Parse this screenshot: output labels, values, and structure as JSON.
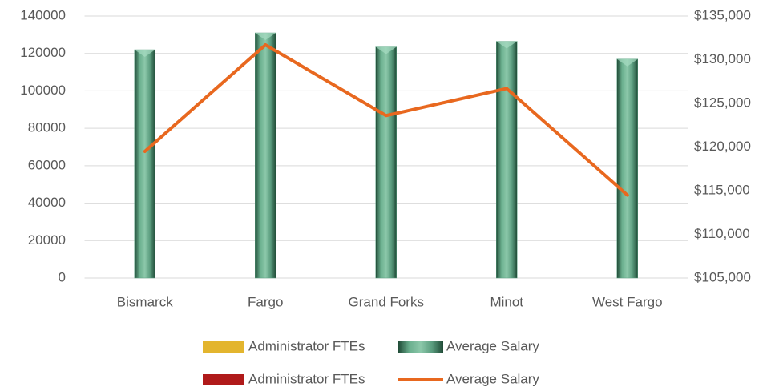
{
  "chart_data": {
    "type": "bar-line",
    "categories": [
      "Bismarck",
      "Fargo",
      "Grand Forks",
      "Minot",
      "West Fargo"
    ],
    "series": [
      {
        "name": "Administrator FTEs",
        "color": "#e3b52e",
        "mark": "bar",
        "values": [
          null,
          null,
          null,
          null,
          null
        ]
      },
      {
        "name": "Average Salary",
        "color": "#5b9f80",
        "mark": "bar",
        "values": [
          122000,
          131000,
          123500,
          126500,
          117000
        ]
      },
      {
        "name": "Administrator FTEs",
        "color": "#b01a1a",
        "mark": "bar",
        "axis": "y2",
        "values": [
          null,
          null,
          null,
          null,
          null
        ]
      },
      {
        "name": "Average Salary",
        "color": "#e8681f",
        "mark": "line",
        "axis": "y2",
        "values": [
          119500,
          131700,
          123600,
          126700,
          114500
        ]
      }
    ],
    "ylim": [
      0,
      140000
    ],
    "yticks": [
      0,
      20000,
      40000,
      60000,
      80000,
      100000,
      120000,
      140000
    ],
    "y2lim": [
      105000,
      135000
    ],
    "y2ticks": [
      {
        "value": 105000,
        "label": "$105,000"
      },
      {
        "value": 110000,
        "label": "$110,000"
      },
      {
        "value": 115000,
        "label": "$115,000"
      },
      {
        "value": 120000,
        "label": "$120,000"
      },
      {
        "value": 125000,
        "label": "$125,000"
      },
      {
        "value": 130000,
        "label": "$130,000"
      },
      {
        "value": 135000,
        "label": "$135,000"
      }
    ],
    "grid": true,
    "legend": "bottom"
  }
}
